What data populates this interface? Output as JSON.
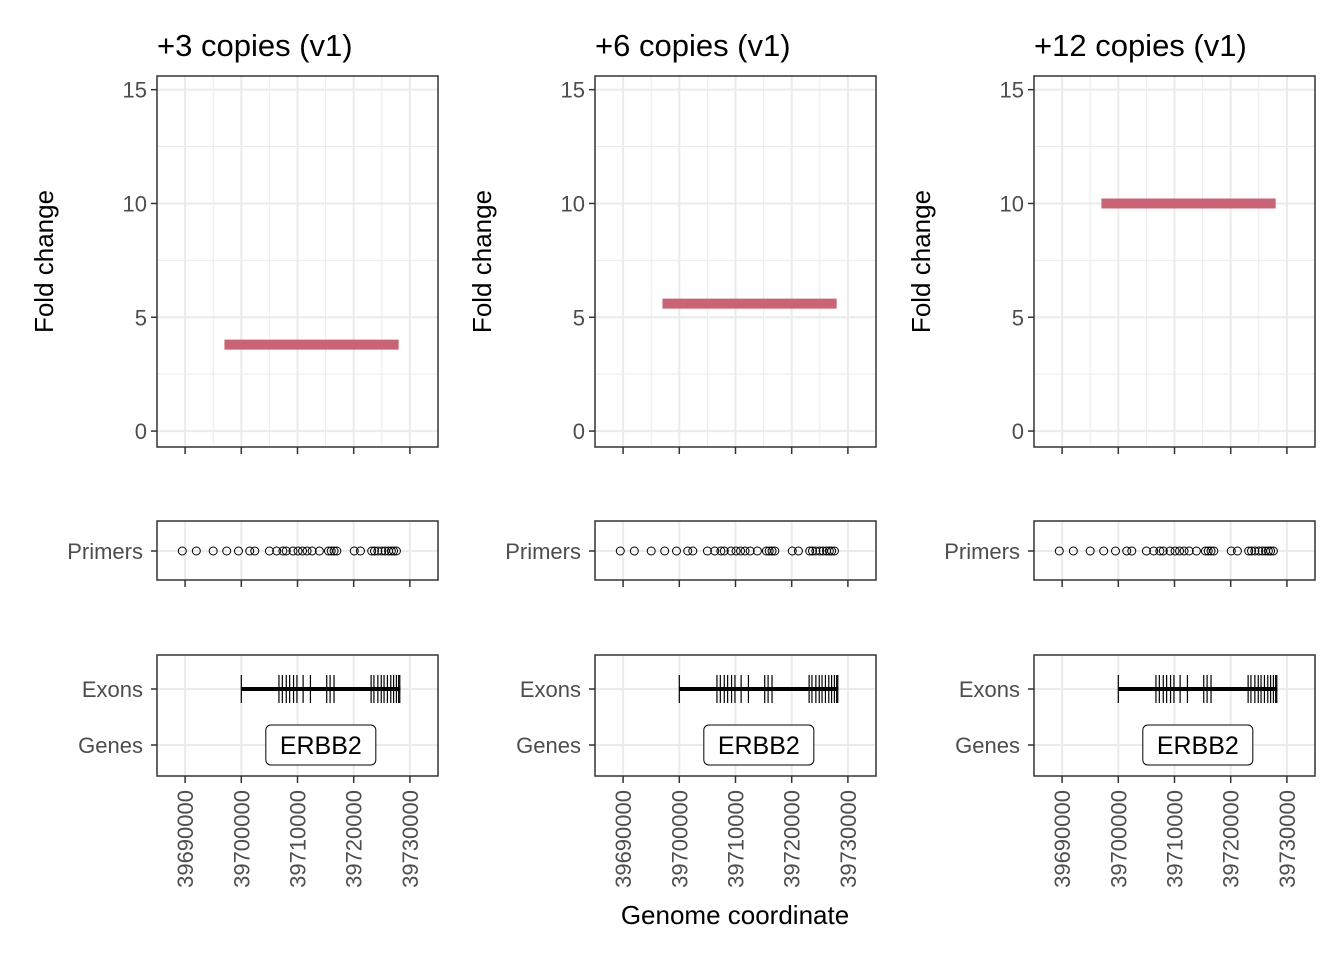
{
  "xlabel": "Genome coordinate",
  "chart_data": [
    {
      "type": "line",
      "title": "+3 copies (v1)",
      "ylabel": "Fold change",
      "xlim": [
        39685000,
        39735000
      ],
      "ylim": [
        -0.7,
        15.6
      ],
      "x_ticks": [
        39690000,
        39700000,
        39710000,
        39720000,
        39730000
      ],
      "x_tick_labels": [
        "39690000",
        "39700000",
        "39710000",
        "39720000",
        "39730000"
      ],
      "y_ticks": [
        0,
        5,
        10,
        15
      ],
      "y_tick_labels": [
        "0",
        "5",
        "10",
        "15"
      ],
      "series": [
        {
          "x": [
            39697000,
            39728000
          ],
          "y": [
            3.8,
            3.8
          ],
          "color": "#c86476"
        }
      ],
      "primers": [
        39689500,
        39692000,
        39695000,
        39697400,
        39699500,
        39701500,
        39702400,
        39705000,
        39706300,
        39707400,
        39708000,
        39709200,
        39710100,
        39710900,
        39711700,
        39712600,
        39713900,
        39715500,
        39716000,
        39716500,
        39717000,
        39720100,
        39721200,
        39723200,
        39723700,
        39724300,
        39725000,
        39725600,
        39726200,
        39726700,
        39727100,
        39727600
      ],
      "exons": [
        39700000,
        39706700,
        39707300,
        39708000,
        39708600,
        39709300,
        39709900,
        39711000,
        39712300,
        39715200,
        39715800,
        39716500,
        39723100,
        39723600,
        39724300,
        39724900,
        39725400,
        39726000,
        39726600,
        39727100,
        39727600,
        39728000,
        39728200
      ],
      "gene": {
        "label": "ERBB2",
        "start": 39700000,
        "end": 39728300
      },
      "track_labels": {
        "primers": "Primers",
        "exons": "Exons",
        "genes": "Genes"
      }
    },
    {
      "type": "line",
      "title": "+6 copies (v1)",
      "ylabel": "Fold change",
      "xlim": [
        39685000,
        39735000
      ],
      "ylim": [
        -0.7,
        15.6
      ],
      "x_ticks": [
        39690000,
        39700000,
        39710000,
        39720000,
        39730000
      ],
      "x_tick_labels": [
        "39690000",
        "39700000",
        "39710000",
        "39720000",
        "39730000"
      ],
      "y_ticks": [
        0,
        5,
        10,
        15
      ],
      "y_tick_labels": [
        "0",
        "5",
        "10",
        "15"
      ],
      "series": [
        {
          "x": [
            39697000,
            39728000
          ],
          "y": [
            5.6,
            5.6
          ],
          "color": "#c86476"
        }
      ],
      "primers": [
        39689500,
        39692000,
        39695000,
        39697400,
        39699500,
        39701500,
        39702400,
        39705000,
        39706300,
        39707400,
        39708000,
        39709200,
        39710100,
        39710900,
        39711700,
        39712600,
        39713900,
        39715500,
        39716000,
        39716500,
        39717000,
        39720100,
        39721200,
        39723200,
        39723700,
        39724300,
        39725000,
        39725600,
        39726200,
        39726700,
        39727100,
        39727600
      ],
      "exons": [
        39700000,
        39706700,
        39707300,
        39708000,
        39708600,
        39709300,
        39709900,
        39711000,
        39712300,
        39715200,
        39715800,
        39716500,
        39723100,
        39723600,
        39724300,
        39724900,
        39725400,
        39726000,
        39726600,
        39727100,
        39727600,
        39728000,
        39728200
      ],
      "gene": {
        "label": "ERBB2",
        "start": 39700000,
        "end": 39728300
      },
      "track_labels": {
        "primers": "Primers",
        "exons": "Exons",
        "genes": "Genes"
      }
    },
    {
      "type": "line",
      "title": "+12 copies (v1)",
      "ylabel": "Fold change",
      "xlim": [
        39685000,
        39735000
      ],
      "ylim": [
        -0.7,
        15.6
      ],
      "x_ticks": [
        39690000,
        39700000,
        39710000,
        39720000,
        39730000
      ],
      "x_tick_labels": [
        "39690000",
        "39700000",
        "39710000",
        "39720000",
        "39730000"
      ],
      "y_ticks": [
        0,
        5,
        10,
        15
      ],
      "y_tick_labels": [
        "0",
        "5",
        "10",
        "15"
      ],
      "series": [
        {
          "x": [
            39697000,
            39728000
          ],
          "y": [
            10.0,
            10.0
          ],
          "color": "#c86476"
        }
      ],
      "primers": [
        39689500,
        39692000,
        39695000,
        39697400,
        39699500,
        39701500,
        39702400,
        39705000,
        39706300,
        39707400,
        39708000,
        39709200,
        39710100,
        39710900,
        39711700,
        39712600,
        39713900,
        39715500,
        39716000,
        39716500,
        39717000,
        39720100,
        39721200,
        39723200,
        39723700,
        39724300,
        39725000,
        39725600,
        39726200,
        39726700,
        39727100,
        39727600
      ],
      "exons": [
        39700000,
        39706700,
        39707300,
        39708000,
        39708600,
        39709300,
        39709900,
        39711000,
        39712300,
        39715200,
        39715800,
        39716500,
        39723100,
        39723600,
        39724300,
        39724900,
        39725400,
        39726000,
        39726600,
        39727100,
        39727600,
        39728000,
        39728200
      ],
      "gene": {
        "label": "ERBB2",
        "start": 39700000,
        "end": 39728300
      },
      "track_labels": {
        "primers": "Primers",
        "exons": "Exons",
        "genes": "Genes"
      }
    }
  ]
}
